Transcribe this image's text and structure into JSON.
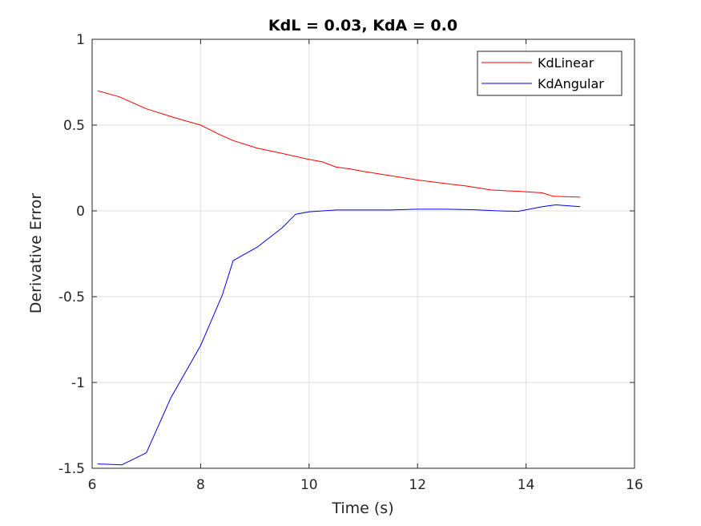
{
  "chart_data": {
    "type": "line",
    "title": "KdL = 0.03, KdA = 0.0",
    "xlabel": "Time (s)",
    "ylabel": "Derivative Error",
    "xlim": [
      6,
      16
    ],
    "ylim": [
      -1.5,
      1
    ],
    "xticks": [
      6,
      8,
      10,
      12,
      14,
      16
    ],
    "yticks": [
      -1.5,
      -1,
      -0.5,
      0,
      0.5,
      1
    ],
    "xtick_labels": [
      "6",
      "8",
      "10",
      "12",
      "14",
      "16"
    ],
    "ytick_labels": [
      "-1.5",
      "-1",
      "-0.5",
      "0",
      "0.5",
      "1"
    ],
    "grid": true,
    "legend_position": "top-right",
    "series": [
      {
        "name": "KdLinear",
        "color": "#ff0000",
        "x": [
          6.1,
          6.5,
          7.0,
          7.5,
          8.0,
          8.35,
          8.6,
          9.05,
          9.5,
          10.0,
          10.25,
          10.5,
          10.75,
          11.0,
          11.5,
          12.0,
          12.5,
          12.9,
          13.35,
          13.9,
          14.3,
          14.5,
          15.0
        ],
        "y": [
          0.7,
          0.665,
          0.595,
          0.545,
          0.5,
          0.445,
          0.41,
          0.365,
          0.335,
          0.3,
          0.285,
          0.255,
          0.245,
          0.23,
          0.205,
          0.18,
          0.16,
          0.145,
          0.122,
          0.113,
          0.105,
          0.085,
          0.08
        ]
      },
      {
        "name": "KdAngular",
        "color": "#0000ff",
        "x": [
          6.1,
          6.55,
          7.0,
          7.45,
          8.0,
          8.4,
          8.6,
          9.05,
          9.5,
          9.75,
          10.0,
          10.5,
          11.0,
          11.5,
          12.0,
          12.5,
          13.0,
          13.5,
          13.85,
          14.3,
          14.55,
          15.0
        ],
        "y": [
          -1.475,
          -1.48,
          -1.41,
          -1.09,
          -0.785,
          -0.49,
          -0.29,
          -0.21,
          -0.1,
          -0.02,
          -0.005,
          0.005,
          0.005,
          0.005,
          0.01,
          0.01,
          0.007,
          0.0,
          -0.003,
          0.025,
          0.035,
          0.025
        ]
      }
    ]
  }
}
